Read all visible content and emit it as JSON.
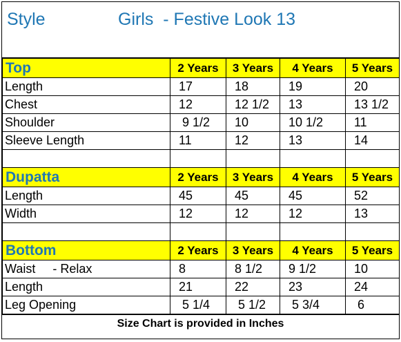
{
  "header": {
    "style_label": "Style",
    "title": "Girls  - Festive Look 13"
  },
  "age_headers": [
    "2 Years",
    "3 Years",
    "4 Years",
    "5 Years"
  ],
  "sections": [
    {
      "name": "Top",
      "rows": [
        {
          "label": "Length",
          "values": [
            "17",
            "18",
            "19",
            "20"
          ]
        },
        {
          "label": "Chest",
          "values": [
            "12",
            "12 1/2",
            "13",
            "13 1/2"
          ]
        },
        {
          "label": "Shoulder",
          "values": [
            " 9 1/2",
            "10",
            "10 1/2",
            "11"
          ]
        },
        {
          "label": "Sleeve Length",
          "values": [
            "11",
            "12",
            "13",
            "14"
          ]
        }
      ]
    },
    {
      "name": "Dupatta",
      "rows": [
        {
          "label": "Length",
          "values": [
            "45",
            "45",
            "45",
            "52"
          ]
        },
        {
          "label": "Width",
          "values": [
            "12",
            "12",
            "12",
            "13"
          ]
        }
      ]
    },
    {
      "name": "Bottom",
      "rows": [
        {
          "label": "Waist     - Relax",
          "values": [
            "8",
            "8 1/2",
            "9 1/2",
            "10"
          ]
        },
        {
          "label": "Length",
          "values": [
            "21",
            "22",
            "23",
            "24"
          ]
        },
        {
          "label": "Leg Opening",
          "values": [
            " 5 1/4",
            " 5 1/2",
            " 5 3/4",
            " 6"
          ]
        }
      ]
    }
  ],
  "footer": "Size Chart is provided in Inches",
  "colors": {
    "section_bg": "#ffff00",
    "title_blue": "#1f77b4"
  }
}
